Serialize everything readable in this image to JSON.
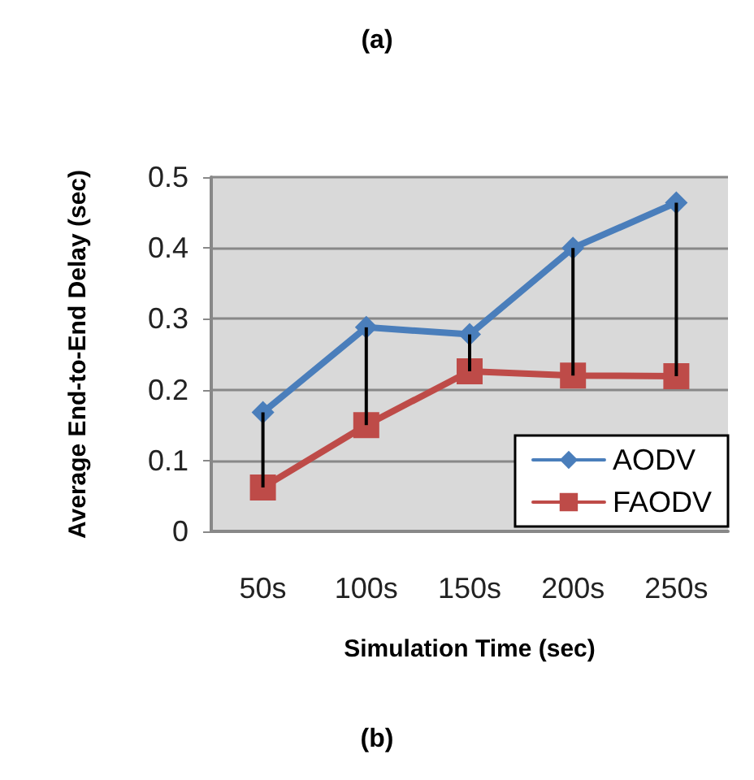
{
  "chart_data": {
    "type": "line",
    "title": "(a)",
    "xlabel": "Simulation Time (sec)",
    "ylabel": "Average End-to-End Delay (sec)",
    "annotations": [
      "(b)"
    ],
    "categories": [
      "50s",
      "100s",
      "150s",
      "200s",
      "250s"
    ],
    "series": [
      {
        "name": "AODV",
        "color": "#4a7ebb",
        "marker": "diamond",
        "values": [
          0.168,
          0.288,
          0.278,
          0.4,
          0.464
        ]
      },
      {
        "name": "FAODV",
        "color": "#be4b48",
        "marker": "square",
        "values": [
          0.062,
          0.15,
          0.226,
          0.22,
          0.219
        ],
        "errors": [
          [
            0.062,
            0.168
          ],
          [
            0.15,
            0.288
          ],
          [
            0.226,
            0.278
          ],
          [
            0.22,
            0.4
          ],
          [
            0.219,
            0.464
          ]
        ]
      }
    ],
    "ylim": [
      0,
      0.5
    ],
    "yticks": [
      0,
      0.1,
      0.2,
      0.3,
      0.4,
      0.5
    ],
    "grid": "y",
    "legend": "bottom right"
  }
}
